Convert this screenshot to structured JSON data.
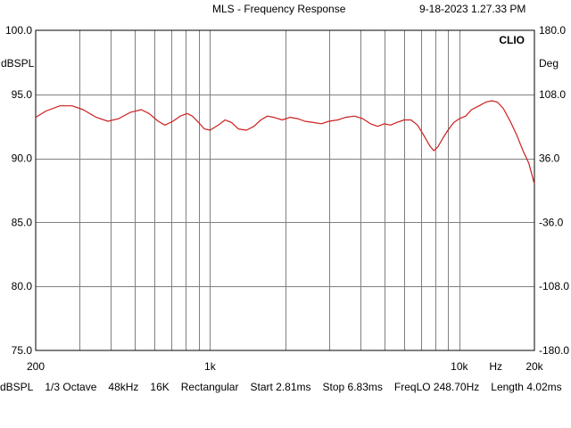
{
  "header": {
    "title": "MLS - Frequency Response",
    "timestamp": "9-18-2023 1.27.33 PM"
  },
  "chart_data": {
    "type": "line",
    "brand": "CLIO",
    "ylabel_left": "dBSPL",
    "ylabel_right": "Deg",
    "x_unit": "Hz",
    "x_scale": "log",
    "xlim": [
      200,
      20000
    ],
    "ylim": [
      75,
      100
    ],
    "ylim_right": [
      -180,
      180
    ],
    "y_ticks": [
      "100.0",
      "95.0",
      "90.0",
      "85.0",
      "80.0",
      "75.0"
    ],
    "y_right_ticks": [
      "180.0",
      "108.0",
      "36.0",
      "-36.0",
      "-108.0",
      "-180.0"
    ],
    "x_tick_labels": [
      {
        "value": 200,
        "label": "200"
      },
      {
        "value": 1000,
        "label": "1k"
      },
      {
        "value": 10000,
        "label": "10k"
      },
      {
        "value": 14000,
        "label": "Hz"
      },
      {
        "value": 20000,
        "label": "20k"
      }
    ],
    "grid": true,
    "colors": {
      "trace": "#cc1f1f",
      "grid": "#808080",
      "frame": "#000000"
    },
    "series": [
      {
        "values": [
          [
            200,
            93.2
          ],
          [
            220,
            93.7
          ],
          [
            250,
            94.1
          ],
          [
            280,
            94.1
          ],
          [
            310,
            93.8
          ],
          [
            350,
            93.2
          ],
          [
            390,
            92.9
          ],
          [
            430,
            93.1
          ],
          [
            480,
            93.6
          ],
          [
            530,
            93.8
          ],
          [
            570,
            93.5
          ],
          [
            620,
            92.9
          ],
          [
            660,
            92.6
          ],
          [
            710,
            92.9
          ],
          [
            760,
            93.3
          ],
          [
            810,
            93.5
          ],
          [
            850,
            93.3
          ],
          [
            900,
            92.8
          ],
          [
            950,
            92.3
          ],
          [
            1000,
            92.2
          ],
          [
            1080,
            92.6
          ],
          [
            1150,
            93.0
          ],
          [
            1220,
            92.8
          ],
          [
            1300,
            92.3
          ],
          [
            1400,
            92.2
          ],
          [
            1500,
            92.5
          ],
          [
            1600,
            93.0
          ],
          [
            1700,
            93.3
          ],
          [
            1800,
            93.2
          ],
          [
            1950,
            93.0
          ],
          [
            2100,
            93.2
          ],
          [
            2250,
            93.1
          ],
          [
            2400,
            92.9
          ],
          [
            2600,
            92.8
          ],
          [
            2800,
            92.7
          ],
          [
            3000,
            92.9
          ],
          [
            3250,
            93.0
          ],
          [
            3500,
            93.2
          ],
          [
            3800,
            93.3
          ],
          [
            4100,
            93.1
          ],
          [
            4400,
            92.7
          ],
          [
            4700,
            92.5
          ],
          [
            5000,
            92.7
          ],
          [
            5300,
            92.6
          ],
          [
            5600,
            92.8
          ],
          [
            6000,
            93.0
          ],
          [
            6400,
            93.0
          ],
          [
            6800,
            92.6
          ],
          [
            7200,
            91.8
          ],
          [
            7600,
            91.0
          ],
          [
            7900,
            90.6
          ],
          [
            8200,
            90.9
          ],
          [
            8600,
            91.6
          ],
          [
            9000,
            92.2
          ],
          [
            9500,
            92.8
          ],
          [
            10000,
            93.1
          ],
          [
            10600,
            93.3
          ],
          [
            11200,
            93.8
          ],
          [
            12000,
            94.1
          ],
          [
            12800,
            94.4
          ],
          [
            13500,
            94.5
          ],
          [
            14200,
            94.4
          ],
          [
            15000,
            93.9
          ],
          [
            16000,
            92.9
          ],
          [
            17000,
            91.8
          ],
          [
            18000,
            90.6
          ],
          [
            19000,
            89.6
          ],
          [
            20000,
            88.0
          ]
        ]
      }
    ]
  },
  "status_bar": [
    "dBSPL",
    "1/3 Octave",
    "48kHz",
    "16K",
    "Rectangular",
    "Start 2.81ms",
    "Stop 6.83ms",
    "FreqLO 248.70Hz",
    "Length 4.02ms"
  ]
}
